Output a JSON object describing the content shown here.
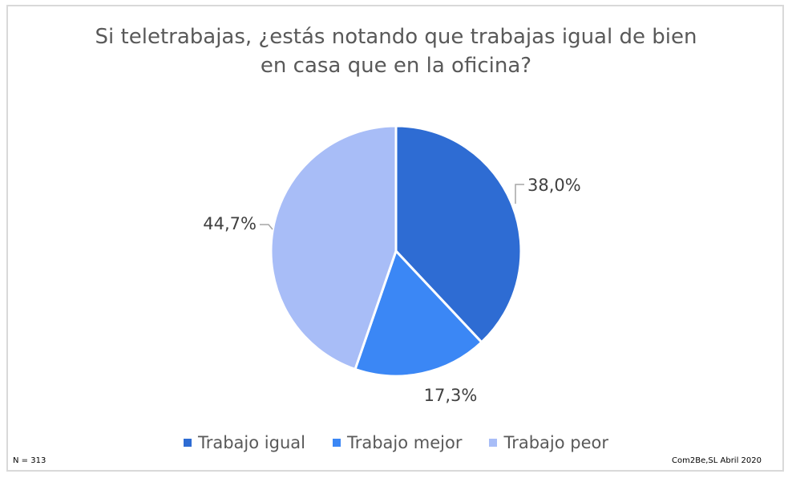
{
  "chart_data": {
    "type": "pie",
    "title_lines": [
      "Si teletrabajas, ¿estás notando que trabajas igual de bien",
      "en casa que en la oficina?"
    ],
    "categories": [
      "Trabajo igual",
      "Trabajo mejor",
      "Trabajo peor"
    ],
    "values": [
      38.0,
      17.3,
      44.7
    ],
    "labels": [
      "38,0%",
      "17,3%",
      "44,7%"
    ],
    "colors": [
      "#2e6cd3",
      "#3b87f5",
      "#a8bdf7"
    ],
    "legend_position": "bottom"
  },
  "footnote_left": "N = 313",
  "footnote_right": "Com2Be,SL Abril 2020"
}
